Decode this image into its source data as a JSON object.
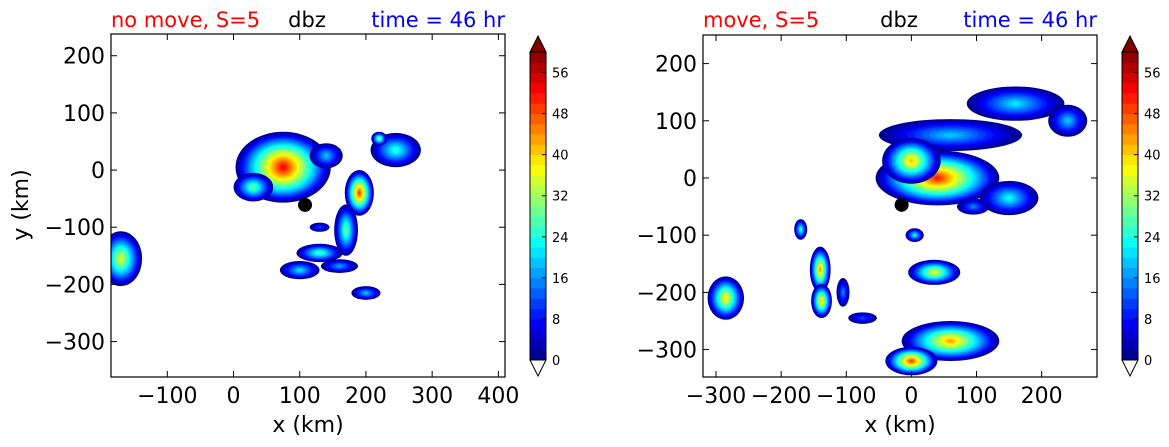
{
  "chart_data": [
    {
      "type": "heatmap",
      "title_left": "no move, S=5",
      "title_center": "dbz",
      "title_right": "time = 46 hr",
      "title_left_color": "#ff0000",
      "title_center_color": "#000000",
      "title_right_color": "#0000ff",
      "xlabel": "x (km)",
      "ylabel": "y (km)",
      "xlim": [
        -185,
        410
      ],
      "ylim": [
        -362,
        238
      ],
      "xticks": [
        -100,
        0,
        100,
        200,
        300,
        400
      ],
      "xtick_labels": [
        "−100",
        "0",
        "100",
        "200",
        "300",
        "400"
      ],
      "yticks": [
        200,
        100,
        0,
        -100,
        -200,
        -300
      ],
      "ytick_labels": [
        "200",
        "100",
        "0",
        "−100",
        "−200",
        "−300"
      ],
      "center_marker": {
        "x": 108,
        "y": -61
      },
      "grid": false,
      "colorbar": {
        "min": 0,
        "max": 60,
        "step": 2,
        "ticks": [
          0,
          8,
          16,
          24,
          32,
          40,
          48,
          56
        ],
        "tick_labels": [
          "0",
          "8",
          "16",
          "24",
          "32",
          "40",
          "48",
          "56"
        ],
        "extend": "both"
      },
      "cells": [
        {
          "x": 75,
          "y": 5,
          "rx": 72,
          "ry": 62,
          "peak": 52
        },
        {
          "x": 30,
          "y": -30,
          "rx": 30,
          "ry": 25,
          "peak": 28
        },
        {
          "x": 140,
          "y": 25,
          "rx": 25,
          "ry": 22,
          "peak": 18
        },
        {
          "x": 245,
          "y": 35,
          "rx": 38,
          "ry": 30,
          "peak": 24
        },
        {
          "x": 190,
          "y": -40,
          "rx": 22,
          "ry": 40,
          "peak": 48
        },
        {
          "x": 170,
          "y": -105,
          "rx": 18,
          "ry": 45,
          "peak": 28
        },
        {
          "x": 130,
          "y": -145,
          "rx": 35,
          "ry": 16,
          "peak": 26
        },
        {
          "x": 100,
          "y": -175,
          "rx": 30,
          "ry": 16,
          "peak": 20
        },
        {
          "x": 200,
          "y": -215,
          "rx": 22,
          "ry": 12,
          "peak": 18
        },
        {
          "x": 160,
          "y": -168,
          "rx": 28,
          "ry": 12,
          "peak": 16
        },
        {
          "x": -170,
          "y": -155,
          "rx": 32,
          "ry": 48,
          "peak": 35
        },
        {
          "x": 130,
          "y": -100,
          "rx": 15,
          "ry": 8,
          "peak": 10
        },
        {
          "x": 220,
          "y": 55,
          "rx": 12,
          "ry": 12,
          "peak": 30
        }
      ]
    },
    {
      "type": "heatmap",
      "title_left": "move, S=5",
      "title_center": "dbz",
      "title_right": "time = 46 hr",
      "title_left_color": "#ff0000",
      "title_center_color": "#000000",
      "title_right_color": "#0000ff",
      "xlabel": "x (km)",
      "ylabel": "",
      "xlim": [
        -320,
        285
      ],
      "ylim": [
        -348,
        250
      ],
      "xticks": [
        -300,
        -200,
        -100,
        0,
        100,
        200
      ],
      "xtick_labels": [
        "−300",
        "−200",
        "−100",
        "0",
        "100",
        "200"
      ],
      "yticks": [
        200,
        100,
        0,
        -100,
        -200,
        -300
      ],
      "ytick_labels": [
        "200",
        "100",
        "0",
        "−100",
        "−200",
        "−300"
      ],
      "center_marker": {
        "x": -15,
        "y": -47
      },
      "grid": false,
      "colorbar": {
        "min": 0,
        "max": 60,
        "step": 2,
        "ticks": [
          0,
          8,
          16,
          24,
          32,
          40,
          48,
          56
        ],
        "tick_labels": [
          "0",
          "8",
          "16",
          "24",
          "32",
          "40",
          "48",
          "56"
        ],
        "extend": "both"
      },
      "cells": [
        {
          "x": 40,
          "y": 0,
          "rx": 95,
          "ry": 48,
          "peak": 50
        },
        {
          "x": 150,
          "y": -35,
          "rx": 45,
          "ry": 30,
          "peak": 22
        },
        {
          "x": 60,
          "y": 75,
          "rx": 110,
          "ry": 28,
          "peak": 18
        },
        {
          "x": 160,
          "y": 130,
          "rx": 75,
          "ry": 30,
          "peak": 20
        },
        {
          "x": 240,
          "y": 100,
          "rx": 30,
          "ry": 28,
          "peak": 18
        },
        {
          "x": 0,
          "y": 30,
          "rx": 45,
          "ry": 40,
          "peak": 40
        },
        {
          "x": 95,
          "y": -50,
          "rx": 25,
          "ry": 14,
          "peak": 14
        },
        {
          "x": 35,
          "y": -165,
          "rx": 40,
          "ry": 22,
          "peak": 36
        },
        {
          "x": 60,
          "y": -285,
          "rx": 75,
          "ry": 35,
          "peak": 42
        },
        {
          "x": 0,
          "y": -320,
          "rx": 40,
          "ry": 25,
          "peak": 48
        },
        {
          "x": -140,
          "y": -160,
          "rx": 16,
          "ry": 40,
          "peak": 42
        },
        {
          "x": -138,
          "y": -215,
          "rx": 16,
          "ry": 30,
          "peak": 40
        },
        {
          "x": -170,
          "y": -90,
          "rx": 10,
          "ry": 18,
          "peak": 24
        },
        {
          "x": -105,
          "y": -200,
          "rx": 10,
          "ry": 25,
          "peak": 14
        },
        {
          "x": -285,
          "y": -210,
          "rx": 28,
          "ry": 38,
          "peak": 38
        },
        {
          "x": -75,
          "y": -245,
          "rx": 22,
          "ry": 10,
          "peak": 10
        },
        {
          "x": 5,
          "y": -100,
          "rx": 14,
          "ry": 12,
          "peak": 22
        }
      ]
    }
  ]
}
